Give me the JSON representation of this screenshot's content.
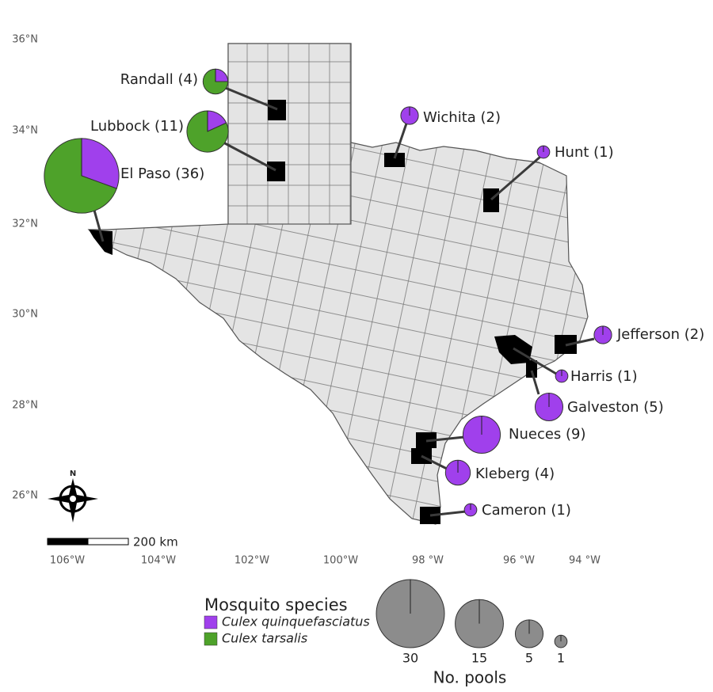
{
  "map": {
    "lat_labels": [
      "36°N",
      "34°N",
      "32°N",
      "30°N",
      "28°N",
      "26°N"
    ],
    "lon_labels": [
      "106°W",
      "104°W",
      "102°W",
      "100°W",
      "98 °W",
      "96 °W",
      "94 °W"
    ],
    "north": "N",
    "scale_label": "200 km",
    "legend_title": "Mosquito species",
    "species": [
      {
        "name": "Culex quinquefasciatus",
        "color": "#a040ec"
      },
      {
        "name": "Culex tarsalis",
        "color": "#4ea22a"
      }
    ],
    "size_legend": {
      "title": "No. pools",
      "values": [
        30,
        15,
        5,
        1
      ]
    },
    "counties": [
      {
        "label": "Randall (4)",
        "values": [
          1,
          3
        ]
      },
      {
        "label": "Lubbock (11)",
        "values": [
          2,
          9
        ]
      },
      {
        "label": "El Paso (36)",
        "values": [
          11,
          25
        ]
      },
      {
        "label": "Wichita (2)",
        "values": [
          2,
          0
        ]
      },
      {
        "label": "Hunt (1)",
        "values": [
          1,
          0
        ]
      },
      {
        "label": "Jefferson (2)",
        "values": [
          2,
          0
        ]
      },
      {
        "label": "Harris (1)",
        "values": [
          1,
          0
        ]
      },
      {
        "label": "Galveston (5)",
        "values": [
          5,
          0
        ]
      },
      {
        "label": "Nueces (9)",
        "values": [
          9,
          0
        ]
      },
      {
        "label": "Kleberg (4)",
        "values": [
          4,
          0
        ]
      },
      {
        "label": "Cameron (1)",
        "values": [
          1,
          0
        ]
      }
    ]
  }
}
